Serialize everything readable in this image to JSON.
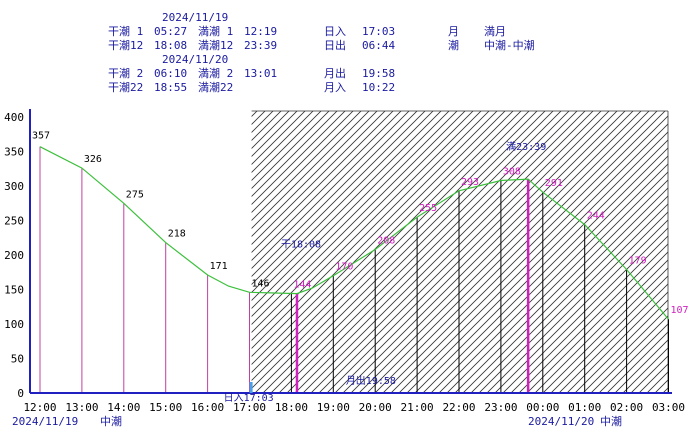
{
  "header": {
    "date1": "2024/11/19",
    "low1_label": "干潮 1",
    "low1_time": "05:27",
    "high1_label": "満潮 1",
    "high1_time": "12:19",
    "low12_label": "干潮12",
    "low12_time": "18:08",
    "high12_label": "満潮12",
    "high12_time": "23:39",
    "sunset_label": "日入",
    "sunset_time": "17:03",
    "sunrise_label": "日出",
    "sunrise_time": "06:44",
    "moon_label": "月",
    "moon_value": "満月",
    "tide_label": "潮",
    "tide_value": "中潮-中潮",
    "date2": "2024/11/20",
    "low2_label": "干潮 2",
    "low2_time": "06:10",
    "high2_label": "満潮 2",
    "high2_time": "13:01",
    "low22_label": "干潮22",
    "low22_time": "18:55",
    "high22_label": "満潮22",
    "high22_time": "",
    "moonrise_label": "月出",
    "moonrise_time": "19:58",
    "moonset_label": "月入",
    "moonset_time": "10:22"
  },
  "chart_data": {
    "type": "line",
    "ylim": [
      0,
      400
    ],
    "yticks": [
      0,
      50,
      100,
      150,
      200,
      250,
      300,
      350,
      400
    ],
    "xticks": [
      "12:00",
      "13:00",
      "14:00",
      "15:00",
      "16:00",
      "17:00",
      "18:00",
      "19:00",
      "20:00",
      "21:00",
      "22:00",
      "23:00",
      "00:00",
      "01:00",
      "02:00",
      "03:00"
    ],
    "date_left": "2024/11/19",
    "tide_left": "中潮",
    "date_right": "2024/11/20",
    "tide_right": "中潮",
    "curve": [
      {
        "t": 12.0,
        "v": 357
      },
      {
        "t": 13.0,
        "v": 326
      },
      {
        "t": 14.0,
        "v": 275
      },
      {
        "t": 15.0,
        "v": 218
      },
      {
        "t": 16.0,
        "v": 171
      },
      {
        "t": 16.5,
        "v": 155
      },
      {
        "t": 17.0,
        "v": 146
      },
      {
        "t": 17.5,
        "v": 145
      },
      {
        "t": 18.133,
        "v": 144
      },
      {
        "t": 18.5,
        "v": 152
      },
      {
        "t": 19.0,
        "v": 170
      },
      {
        "t": 20.0,
        "v": 208
      },
      {
        "t": 21.0,
        "v": 255
      },
      {
        "t": 22.0,
        "v": 293
      },
      {
        "t": 23.0,
        "v": 308
      },
      {
        "t": 23.65,
        "v": 310
      },
      {
        "t": 24.0,
        "v": 291
      },
      {
        "t": 25.0,
        "v": 244
      },
      {
        "t": 26.0,
        "v": 179
      },
      {
        "t": 27.0,
        "v": 107
      }
    ],
    "hour_labels": [
      {
        "t": 12,
        "v": 357,
        "text": "357"
      },
      {
        "t": 13,
        "v": 326,
        "text": "326"
      },
      {
        "t": 14,
        "v": 275,
        "text": "275"
      },
      {
        "t": 15,
        "v": 218,
        "text": "218"
      },
      {
        "t": 16,
        "v": 171,
        "text": "171"
      },
      {
        "t": 17,
        "v": 146,
        "text": "146"
      },
      {
        "t": 18,
        "v": 144,
        "text": "144"
      },
      {
        "t": 19,
        "v": 170,
        "text": "170"
      },
      {
        "t": 20,
        "v": 208,
        "text": "208"
      },
      {
        "t": 21,
        "v": 255,
        "text": "255"
      },
      {
        "t": 22,
        "v": 293,
        "text": "293"
      },
      {
        "t": 23,
        "v": 308,
        "text": "308"
      },
      {
        "t": 24,
        "v": 291,
        "text": "291"
      },
      {
        "t": 25,
        "v": 244,
        "text": "244"
      },
      {
        "t": 26,
        "v": 179,
        "text": "179"
      },
      {
        "t": 27,
        "v": 107,
        "text": "107"
      }
    ],
    "night_start": 17.05,
    "markers": [
      {
        "t": 18.133,
        "v": 144,
        "text": "干18:08"
      },
      {
        "t": 23.65,
        "v": 310,
        "text": "満23:39"
      }
    ],
    "sunset": {
      "t": 17.05,
      "text": "日入17:03"
    },
    "moonrise": {
      "t": 19.967,
      "text": "月出19:58"
    },
    "colors": {
      "curve": "#3cc03c",
      "day_lines": "#c040a0",
      "night_lines": "#000000",
      "markers": "#d020c0",
      "axis": "#2020c0",
      "night_labels": "#d020c0",
      "day_labels": "#000000",
      "event_text": "#1a1aa0"
    }
  }
}
